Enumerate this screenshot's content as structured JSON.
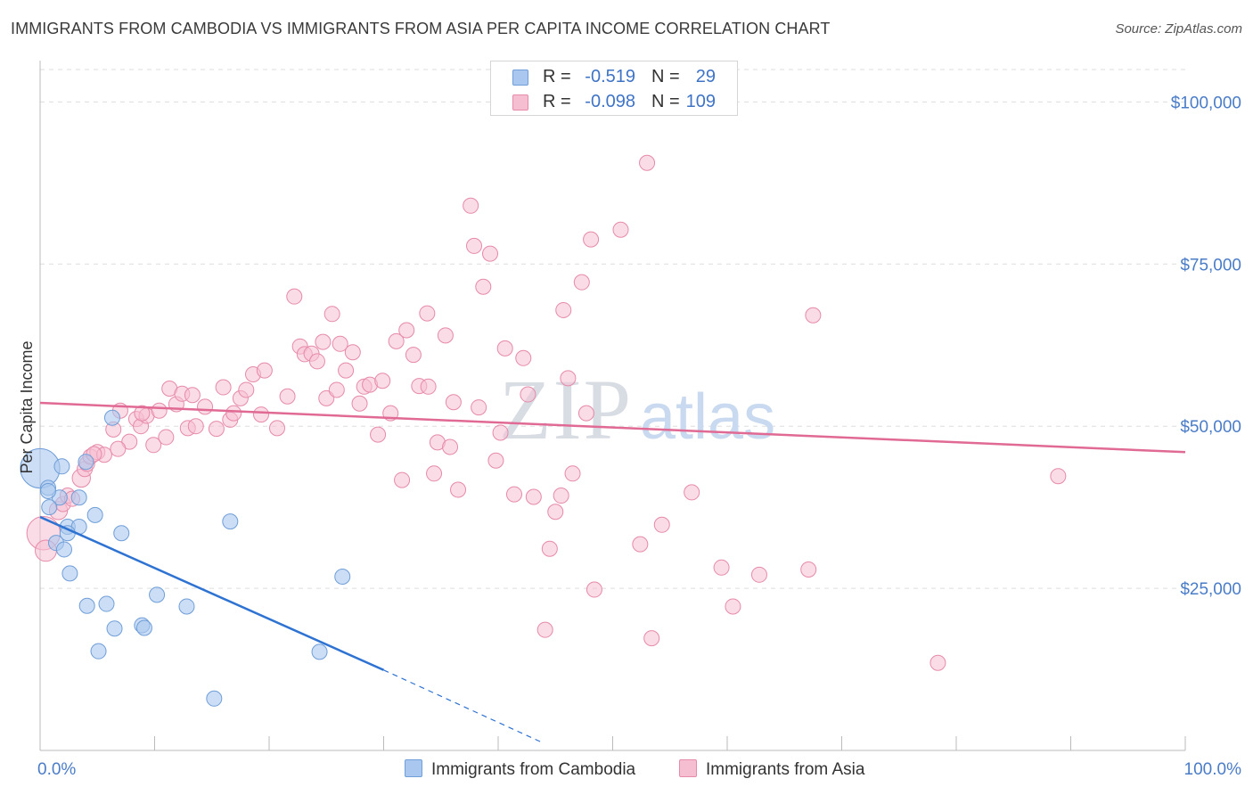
{
  "title": "IMMIGRANTS FROM CAMBODIA VS IMMIGRANTS FROM ASIA PER CAPITA INCOME CORRELATION CHART",
  "source": "Source: ZipAtlas.com",
  "watermark": {
    "zip": "ZIP",
    "atlas": "atlas"
  },
  "legend": {
    "series1": {
      "r_label": "R =",
      "r_value": "-0.519",
      "n_label": "N =",
      "n_value": "29"
    },
    "series2": {
      "r_label": "R =",
      "r_value": "-0.098",
      "n_label": "N =",
      "n_value": "109"
    }
  },
  "colors": {
    "cambodia_fill": "#aac8ef",
    "cambodia_stroke": "#6f9ed8",
    "cambodia_line": "#2e72d2",
    "asia_fill": "#f6bfd1",
    "asia_stroke": "#e68aa9",
    "asia_line": "#e06a93",
    "tick_text": "#4a7cc7",
    "grid": "#dddddd"
  },
  "chart_data": {
    "type": "scatter",
    "title": "IMMIGRANTS FROM CAMBODIA VS IMMIGRANTS FROM ASIA PER CAPITA INCOME CORRELATION CHART",
    "xlabel": "",
    "ylabel": "Per Capita Income",
    "xlim": [
      0,
      100
    ],
    "ylim": [
      0,
      105000
    ],
    "x_tick_labels": [
      "0.0%",
      "100.0%"
    ],
    "y_ticks": [
      25000,
      50000,
      75000,
      100000
    ],
    "y_tick_labels": [
      "$25,000",
      "$50,000",
      "$75,000",
      "$100,000"
    ],
    "grid": true,
    "legend_position": "top-center",
    "series": [
      {
        "name": "Immigrants from Cambodia",
        "r": -0.519,
        "n": 29,
        "trend": {
          "x": [
            0,
            30
          ],
          "y": [
            36000,
            12400
          ],
          "dashed_to": [
            44,
            1100
          ]
        },
        "points": [
          [
            0.0,
            43500,
            2.6
          ],
          [
            0.7,
            40500,
            1
          ],
          [
            1.7,
            39000,
            1
          ],
          [
            0.8,
            37500,
            1
          ],
          [
            1.9,
            43800,
            1
          ],
          [
            3.4,
            39000,
            1
          ],
          [
            4.0,
            44500,
            1
          ],
          [
            2.4,
            34500,
            1
          ],
          [
            3.4,
            34500,
            1
          ],
          [
            4.8,
            36300,
            1
          ],
          [
            2.4,
            33500,
            1
          ],
          [
            7.1,
            33500,
            1
          ],
          [
            1.4,
            32000,
            1
          ],
          [
            2.1,
            31000,
            1
          ],
          [
            2.6,
            27300,
            1
          ],
          [
            6.3,
            51300,
            1
          ],
          [
            16.6,
            35300,
            1
          ],
          [
            26.4,
            26800,
            1
          ],
          [
            10.2,
            24000,
            1
          ],
          [
            4.1,
            22300,
            1
          ],
          [
            5.8,
            22600,
            1
          ],
          [
            12.8,
            22200,
            1
          ],
          [
            6.5,
            18800,
            1
          ],
          [
            8.9,
            19300,
            1
          ],
          [
            9.1,
            18900,
            1
          ],
          [
            5.1,
            15300,
            1
          ],
          [
            24.4,
            15200,
            1
          ],
          [
            15.2,
            8000,
            1
          ],
          [
            0.7,
            40000,
            1
          ]
        ]
      },
      {
        "name": "Immigrants from Asia",
        "r": -0.098,
        "n": 109,
        "trend": {
          "x": [
            0,
            100
          ],
          "y": [
            53600,
            46000
          ]
        },
        "points": [
          [
            0.3,
            33500,
            2.2
          ],
          [
            0.5,
            30800,
            1.4
          ],
          [
            1.6,
            37000,
            1.2
          ],
          [
            2.0,
            38000,
            1
          ],
          [
            2.4,
            39300,
            1
          ],
          [
            3.6,
            42000,
            1.2
          ],
          [
            3.9,
            43400,
            1
          ],
          [
            4.1,
            44200,
            1
          ],
          [
            4.4,
            45300,
            1
          ],
          [
            5.0,
            46000,
            1
          ],
          [
            5.6,
            45600,
            1
          ],
          [
            6.4,
            49500,
            1
          ],
          [
            7.0,
            52400,
            1
          ],
          [
            7.8,
            47600,
            1
          ],
          [
            8.4,
            51100,
            1
          ],
          [
            8.8,
            50000,
            1
          ],
          [
            9.3,
            51600,
            1
          ],
          [
            9.9,
            47100,
            1
          ],
          [
            10.4,
            52400,
            1
          ],
          [
            11.0,
            48300,
            1
          ],
          [
            11.3,
            55800,
            1
          ],
          [
            11.9,
            53400,
            1
          ],
          [
            12.4,
            55000,
            1
          ],
          [
            12.9,
            49700,
            1
          ],
          [
            13.3,
            54800,
            1
          ],
          [
            13.6,
            50000,
            1
          ],
          [
            14.4,
            53000,
            1
          ],
          [
            15.4,
            49600,
            1
          ],
          [
            16.0,
            56000,
            1
          ],
          [
            16.6,
            51000,
            1
          ],
          [
            16.9,
            52000,
            1
          ],
          [
            17.5,
            54300,
            1
          ],
          [
            18.0,
            55600,
            1
          ],
          [
            18.6,
            58000,
            1
          ],
          [
            19.3,
            51800,
            1
          ],
          [
            19.6,
            58600,
            1
          ],
          [
            20.7,
            49700,
            1
          ],
          [
            21.6,
            54600,
            1
          ],
          [
            22.2,
            70000,
            1
          ],
          [
            22.7,
            62300,
            1
          ],
          [
            23.1,
            61100,
            1
          ],
          [
            23.7,
            61200,
            1
          ],
          [
            24.2,
            60000,
            1
          ],
          [
            24.7,
            63000,
            1
          ],
          [
            25.0,
            54300,
            1
          ],
          [
            25.5,
            67300,
            1
          ],
          [
            25.9,
            55600,
            1
          ],
          [
            26.2,
            62700,
            1
          ],
          [
            26.7,
            58600,
            1
          ],
          [
            27.3,
            61400,
            1
          ],
          [
            27.9,
            53500,
            1
          ],
          [
            28.3,
            56100,
            1
          ],
          [
            28.8,
            56400,
            1
          ],
          [
            29.5,
            48700,
            1
          ],
          [
            29.9,
            57000,
            1
          ],
          [
            30.6,
            52000,
            1
          ],
          [
            31.1,
            63100,
            1
          ],
          [
            31.6,
            41700,
            1
          ],
          [
            32.0,
            64800,
            1
          ],
          [
            32.6,
            61000,
            1
          ],
          [
            33.1,
            56200,
            1
          ],
          [
            33.8,
            67400,
            1
          ],
          [
            33.9,
            56100,
            1
          ],
          [
            34.4,
            42700,
            1
          ],
          [
            34.7,
            47500,
            1
          ],
          [
            35.4,
            64000,
            1
          ],
          [
            35.8,
            46800,
            1
          ],
          [
            36.1,
            53700,
            1
          ],
          [
            36.5,
            40200,
            1
          ],
          [
            37.6,
            84000,
            1
          ],
          [
            37.9,
            77800,
            1
          ],
          [
            38.3,
            52900,
            1
          ],
          [
            38.7,
            71500,
            1
          ],
          [
            39.3,
            76600,
            1
          ],
          [
            39.8,
            44700,
            1
          ],
          [
            40.2,
            49000,
            1
          ],
          [
            40.6,
            62000,
            1
          ],
          [
            41.4,
            39500,
            1
          ],
          [
            42.2,
            60500,
            1
          ],
          [
            42.6,
            54900,
            1
          ],
          [
            43.1,
            39100,
            1
          ],
          [
            44.1,
            18600,
            1
          ],
          [
            44.5,
            31100,
            1
          ],
          [
            45.0,
            36800,
            1
          ],
          [
            45.5,
            39300,
            1
          ],
          [
            45.7,
            67900,
            1
          ],
          [
            46.1,
            57400,
            1
          ],
          [
            46.5,
            42700,
            1
          ],
          [
            47.3,
            72200,
            1
          ],
          [
            47.7,
            52000,
            1
          ],
          [
            48.1,
            78800,
            1
          ],
          [
            48.4,
            24800,
            1
          ],
          [
            50.7,
            80300,
            1
          ],
          [
            52.4,
            31800,
            1
          ],
          [
            53.0,
            90600,
            1
          ],
          [
            53.4,
            17300,
            1
          ],
          [
            54.3,
            34800,
            1
          ],
          [
            56.9,
            39800,
            1
          ],
          [
            59.5,
            28200,
            1
          ],
          [
            60.5,
            22200,
            1
          ],
          [
            62.8,
            27100,
            1
          ],
          [
            67.1,
            27900,
            1
          ],
          [
            67.5,
            67100,
            1
          ],
          [
            78.4,
            13500,
            1
          ],
          [
            88.9,
            42300,
            1
          ],
          [
            2.8,
            38800,
            1
          ],
          [
            6.8,
            46500,
            1
          ],
          [
            8.9,
            52000,
            1
          ],
          [
            4.7,
            45700,
            1
          ]
        ]
      }
    ]
  },
  "bottom_legend": {
    "series1_label": "Immigrants from Cambodia",
    "series2_label": "Immigrants from Asia"
  }
}
